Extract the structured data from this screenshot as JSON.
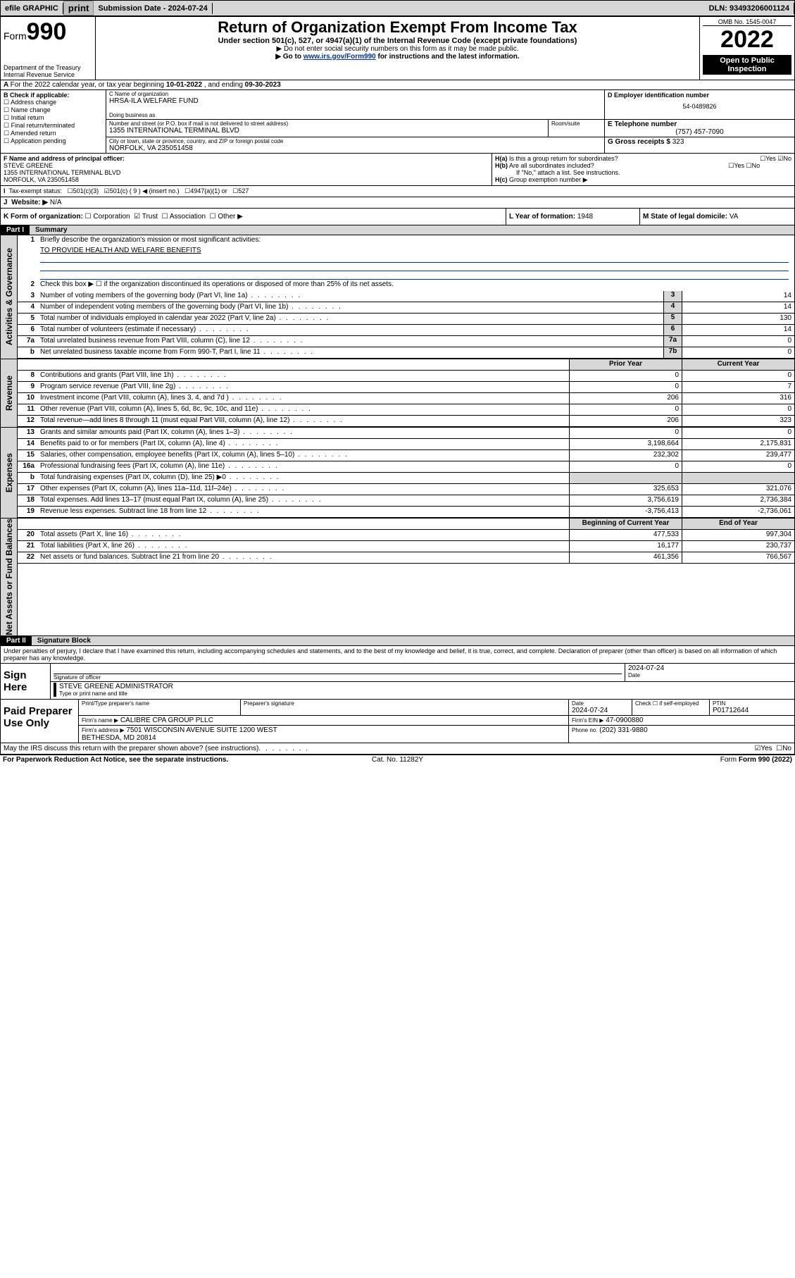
{
  "topbar": {
    "efile": "efile GRAPHIC",
    "print": "print",
    "submission_label": "Submission Date - ",
    "submission_date": "2024-07-24",
    "dln_label": "DLN: ",
    "dln": "93493206001124"
  },
  "header": {
    "form_label": "Form",
    "form_no": "990",
    "dept": "Department of the Treasury",
    "irs": "Internal Revenue Service",
    "title": "Return of Organization Exempt From Income Tax",
    "sub1": "Under section 501(c), 527, or 4947(a)(1) of the Internal Revenue Code (except private foundations)",
    "sub2": "▶ Do not enter social security numbers on this form as it may be made public.",
    "sub3_pre": "▶ Go to ",
    "sub3_link": "www.irs.gov/Form990",
    "sub3_post": " for instructions and the latest information.",
    "omb": "OMB No. 1545-0047",
    "year": "2022",
    "open": "Open to Public Inspection"
  },
  "a_line": {
    "pre": "For the 2022 calendar year, or tax year beginning ",
    "begin": "10-01-2022",
    "mid": " , and ending ",
    "end": "09-30-2023"
  },
  "sec_b": {
    "title": "B Check if applicable:",
    "opts": [
      "Address change",
      "Name change",
      "Initial return",
      "Final return/terminated",
      "Amended return",
      "Application pending"
    ]
  },
  "sec_c": {
    "label": "C Name of organization",
    "name": "HRSA-ILA WELFARE FUND",
    "dba_label": "Doing business as",
    "street_label": "Number and street (or P.O. box if mail is not delivered to street address)",
    "room_label": "Room/suite",
    "street": "1355 INTERNATIONAL TERMINAL BLVD",
    "city_label": "City or town, state or province, country, and ZIP or foreign postal code",
    "city": "NORFOLK, VA  235051458"
  },
  "sec_d": {
    "label": "D Employer identification number",
    "val": "54-0489826"
  },
  "sec_e": {
    "label": "E Telephone number",
    "val": "(757) 457-7090"
  },
  "sec_g": {
    "label": "G Gross receipts $",
    "val": "323"
  },
  "sec_f": {
    "label": "F  Name and address of principal officer:",
    "name": "STEVE GREENE",
    "addr1": "1355 INTERNATIONAL TERMINAL BLVD",
    "addr2": "NORFOLK, VA  235051458"
  },
  "sec_h": {
    "a": "Is this a group return for subordinates?",
    "a_yes": "Yes",
    "a_no": "No",
    "b": "Are all subordinates included?",
    "b_note": "If \"No,\" attach a list. See instructions.",
    "c": "Group exemption number ▶"
  },
  "sec_i": {
    "label": "Tax-exempt status:",
    "opts": [
      "501(c)(3)",
      "501(c) ( 9 ) ◀ (insert no.)",
      "4947(a)(1) or",
      "527"
    ],
    "checked_idx": 1
  },
  "sec_j": {
    "label": "Website: ▶",
    "val": "N/A"
  },
  "sec_k": {
    "label": "K Form of organization:",
    "opts": [
      "Corporation",
      "Trust",
      "Association",
      "Other ▶"
    ],
    "checked_idx": 1
  },
  "sec_l": {
    "label": "L Year of formation:",
    "val": "1948"
  },
  "sec_m": {
    "label": "M State of legal domicile:",
    "val": "VA"
  },
  "part1": {
    "label": "Part I",
    "title": "Summary",
    "vtabs": [
      "Activities & Governance",
      "Revenue",
      "Expenses",
      "Net Assets or Fund Balances"
    ],
    "q1_label": "Briefly describe the organization's mission or most significant activities:",
    "q1_val": "TO PROVIDE HEALTH AND WELFARE BENEFITS",
    "q2": "Check this box ▶ ☐  if the organization discontinued its operations or disposed of more than 25% of its net assets.",
    "lines_top": [
      {
        "n": "3",
        "d": "Number of voting members of the governing body (Part VI, line 1a)",
        "box": "3",
        "v": "14"
      },
      {
        "n": "4",
        "d": "Number of independent voting members of the governing body (Part VI, line 1b)",
        "box": "4",
        "v": "14"
      },
      {
        "n": "5",
        "d": "Total number of individuals employed in calendar year 2022 (Part V, line 2a)",
        "box": "5",
        "v": "130"
      },
      {
        "n": "6",
        "d": "Total number of volunteers (estimate if necessary)",
        "box": "6",
        "v": "14"
      },
      {
        "n": "7a",
        "d": "Total unrelated business revenue from Part VIII, column (C), line 12",
        "box": "7a",
        "v": "0"
      },
      {
        "n": "b",
        "d": "Net unrelated business taxable income from Form 990-T, Part I, line 11",
        "box": "7b",
        "v": "0"
      }
    ],
    "col_hdr_prior": "Prior Year",
    "col_hdr_curr": "Current Year",
    "revenue": [
      {
        "n": "8",
        "d": "Contributions and grants (Part VIII, line 1h)",
        "p": "0",
        "c": "0"
      },
      {
        "n": "9",
        "d": "Program service revenue (Part VIII, line 2g)",
        "p": "0",
        "c": "7"
      },
      {
        "n": "10",
        "d": "Investment income (Part VIII, column (A), lines 3, 4, and 7d )",
        "p": "206",
        "c": "316"
      },
      {
        "n": "11",
        "d": "Other revenue (Part VIII, column (A), lines 5, 6d, 8c, 9c, 10c, and 11e)",
        "p": "0",
        "c": "0"
      },
      {
        "n": "12",
        "d": "Total revenue—add lines 8 through 11 (must equal Part VIII, column (A), line 12)",
        "p": "206",
        "c": "323"
      }
    ],
    "expenses": [
      {
        "n": "13",
        "d": "Grants and similar amounts paid (Part IX, column (A), lines 1–3)",
        "p": "0",
        "c": "0"
      },
      {
        "n": "14",
        "d": "Benefits paid to or for members (Part IX, column (A), line 4)",
        "p": "3,198,664",
        "c": "2,175,831"
      },
      {
        "n": "15",
        "d": "Salaries, other compensation, employee benefits (Part IX, column (A), lines 5–10)",
        "p": "232,302",
        "c": "239,477"
      },
      {
        "n": "16a",
        "d": "Professional fundraising fees (Part IX, column (A), line 11e)",
        "p": "0",
        "c": "0"
      },
      {
        "n": "b",
        "d": "Total fundraising expenses (Part IX, column (D), line 25) ▶0",
        "p": "",
        "c": ""
      },
      {
        "n": "17",
        "d": "Other expenses (Part IX, column (A), lines 11a–11d, 11f–24e)",
        "p": "325,653",
        "c": "321,076"
      },
      {
        "n": "18",
        "d": "Total expenses. Add lines 13–17 (must equal Part IX, column (A), line 25)",
        "p": "3,756,619",
        "c": "2,736,384"
      },
      {
        "n": "19",
        "d": "Revenue less expenses. Subtract line 18 from line 12",
        "p": "-3,756,413",
        "c": "-2,736,061"
      }
    ],
    "col_hdr_begin": "Beginning of Current Year",
    "col_hdr_end": "End of Year",
    "net": [
      {
        "n": "20",
        "d": "Total assets (Part X, line 16)",
        "p": "477,533",
        "c": "997,304"
      },
      {
        "n": "21",
        "d": "Total liabilities (Part X, line 26)",
        "p": "16,177",
        "c": "230,737"
      },
      {
        "n": "22",
        "d": "Net assets or fund balances. Subtract line 21 from line 20",
        "p": "461,356",
        "c": "766,567"
      }
    ]
  },
  "part2": {
    "label": "Part II",
    "title": "Signature Block",
    "penalty": "Under penalties of perjury, I declare that I have examined this return, including accompanying schedules and statements, and to the best of my knowledge and belief, it is true, correct, and complete. Declaration of preparer (other than officer) is based on all information of which preparer has any knowledge.",
    "sign_here": "Sign Here",
    "sig_officer": "Signature of officer",
    "date_label": "Date",
    "date": "2024-07-24",
    "name_title_lbl": "Type or print name and title",
    "name_title": "STEVE GREENE  ADMINISTRATOR",
    "paid": "Paid Preparer Use Only",
    "prep_name_lbl": "Print/Type preparer's name",
    "prep_sig_lbl": "Preparer's signature",
    "prep_date_lbl": "Date",
    "prep_date": "2024-07-24",
    "check_self": "Check ☐ if self-employed",
    "ptin_lbl": "PTIN",
    "ptin": "P01712644",
    "firm_name_lbl": "Firm's name   ▶",
    "firm_name": "CALIBRE CPA GROUP PLLC",
    "firm_ein_lbl": "Firm's EIN ▶",
    "firm_ein": "47-0900880",
    "firm_addr_lbl": "Firm's address ▶",
    "firm_addr": "7501 WISCONSIN AVENUE SUITE 1200 WEST\nBETHESDA, MD  20814",
    "phone_lbl": "Phone no.",
    "phone": "(202) 331-9880",
    "discuss": "May the IRS discuss this return with the preparer shown above? (see instructions)",
    "discuss_yes": "Yes",
    "discuss_no": "No"
  },
  "footer": {
    "paperwork": "For Paperwork Reduction Act Notice, see the separate instructions.",
    "cat": "Cat. No. 11282Y",
    "form": "Form 990 (2022)"
  },
  "colors": {
    "link": "#003399",
    "grey": "#d7d7d7",
    "black": "#000000"
  }
}
